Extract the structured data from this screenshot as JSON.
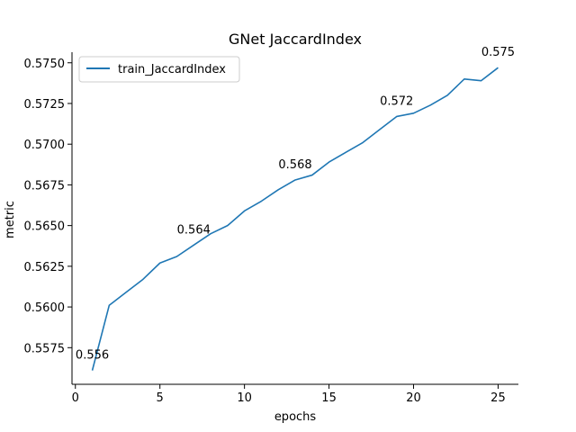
{
  "chart_data": {
    "type": "line",
    "title": "GNet JaccardIndex",
    "xlabel": "epochs",
    "ylabel": "metric",
    "xlim": [
      -0.2,
      26.2
    ],
    "ylim": [
      0.55525,
      0.57565
    ],
    "xticks": [
      0,
      5,
      10,
      15,
      20,
      25
    ],
    "xtick_labels": [
      "0",
      "5",
      "10",
      "15",
      "20",
      "25"
    ],
    "yticks": [
      0.5575,
      0.56,
      0.5625,
      0.565,
      0.5675,
      0.57,
      0.5725,
      0.575
    ],
    "ytick_labels": [
      "0.5575",
      "0.5600",
      "0.5625",
      "0.5650",
      "0.5675",
      "0.5700",
      "0.5725",
      "0.5750"
    ],
    "grid": false,
    "legend_position": "top-left",
    "colors": {
      "series": "#1f77b4"
    },
    "series": [
      {
        "name": "train_JaccardIndex",
        "x": [
          1,
          2,
          3,
          4,
          5,
          6,
          7,
          8,
          9,
          10,
          11,
          12,
          13,
          14,
          15,
          16,
          17,
          18,
          19,
          20,
          21,
          22,
          23,
          24,
          25
        ],
        "y": [
          0.5561,
          0.5601,
          0.5609,
          0.5617,
          0.5627,
          0.5631,
          0.5638,
          0.5645,
          0.565,
          0.5659,
          0.5665,
          0.5672,
          0.5678,
          0.5681,
          0.5689,
          0.5695,
          0.5701,
          0.5709,
          0.5717,
          0.5719,
          0.5724,
          0.573,
          0.574,
          0.5739,
          0.5747
        ]
      }
    ],
    "annotations": [
      {
        "x": 1,
        "y": 0.5561,
        "text": "0.556"
      },
      {
        "x": 7,
        "y": 0.5638,
        "text": "0.564"
      },
      {
        "x": 13,
        "y": 0.5678,
        "text": "0.568"
      },
      {
        "x": 19,
        "y": 0.5717,
        "text": "0.572"
      },
      {
        "x": 25,
        "y": 0.5747,
        "text": "0.575"
      }
    ]
  }
}
